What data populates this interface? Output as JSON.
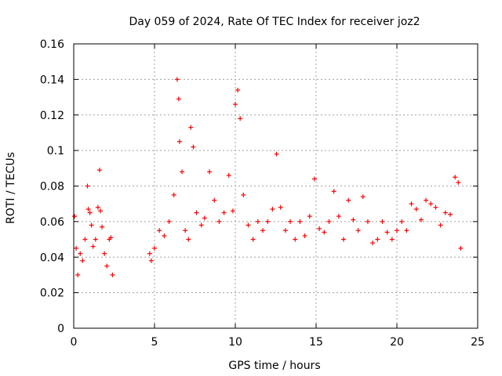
{
  "chart_data": {
    "type": "scatter",
    "title": "Day 059 of 2024, Rate Of TEC Index for receiver joz2",
    "xlabel": "GPS time / hours",
    "ylabel": "ROTI / TECUs",
    "xlim": [
      0,
      25
    ],
    "ylim": [
      0,
      0.16
    ],
    "x_ticks": [
      0,
      5,
      10,
      15,
      20,
      25
    ],
    "x_tick_labels": [
      "0",
      "5",
      "10",
      "15",
      "20",
      "25"
    ],
    "y_ticks": [
      0,
      0.02,
      0.04,
      0.06,
      0.08,
      0.1,
      0.12,
      0.14,
      0.16
    ],
    "y_tick_labels": [
      "0",
      "0.02",
      "0.04",
      "0.06",
      "0.08",
      "0.1",
      "0.12",
      "0.14",
      "0.16"
    ],
    "grid": true,
    "marker": "+",
    "color": "#ff0000",
    "data_gap_hours": [
      2.5,
      4.6
    ],
    "series": [
      {
        "name": "ROTI",
        "x": [
          0.05,
          0.15,
          0.25,
          0.4,
          0.55,
          0.7,
          0.85,
          0.9,
          1.0,
          1.1,
          1.2,
          1.35,
          1.5,
          1.6,
          1.65,
          1.75,
          1.9,
          2.05,
          2.2,
          2.3,
          2.4,
          4.7,
          4.8,
          5.0,
          5.3,
          5.6,
          5.9,
          6.2,
          6.4,
          6.5,
          6.55,
          6.7,
          6.9,
          7.1,
          7.25,
          7.4,
          7.6,
          7.9,
          8.1,
          8.4,
          8.7,
          9.0,
          9.3,
          9.6,
          9.85,
          10.0,
          10.15,
          10.3,
          10.5,
          10.8,
          11.1,
          11.4,
          11.7,
          12.0,
          12.3,
          12.55,
          12.8,
          13.1,
          13.4,
          13.7,
          14.0,
          14.3,
          14.6,
          14.9,
          15.2,
          15.5,
          15.8,
          16.1,
          16.4,
          16.7,
          17.0,
          17.3,
          17.6,
          17.9,
          18.2,
          18.5,
          18.8,
          19.1,
          19.4,
          19.7,
          20.0,
          20.3,
          20.6,
          20.9,
          21.2,
          21.5,
          21.8,
          22.1,
          22.4,
          22.7,
          23.0,
          23.3,
          23.6,
          23.8,
          23.95
        ],
        "y": [
          0.063,
          0.045,
          0.03,
          0.042,
          0.038,
          0.05,
          0.08,
          0.067,
          0.065,
          0.058,
          0.046,
          0.05,
          0.068,
          0.089,
          0.066,
          0.057,
          0.042,
          0.035,
          0.05,
          0.051,
          0.03,
          0.042,
          0.038,
          0.045,
          0.055,
          0.052,
          0.06,
          0.075,
          0.14,
          0.129,
          0.105,
          0.088,
          0.055,
          0.05,
          0.113,
          0.102,
          0.065,
          0.058,
          0.062,
          0.088,
          0.072,
          0.06,
          0.065,
          0.086,
          0.066,
          0.126,
          0.134,
          0.118,
          0.075,
          0.058,
          0.05,
          0.06,
          0.055,
          0.06,
          0.067,
          0.098,
          0.068,
          0.055,
          0.06,
          0.05,
          0.06,
          0.052,
          0.063,
          0.084,
          0.056,
          0.054,
          0.06,
          0.077,
          0.063,
          0.05,
          0.072,
          0.061,
          0.055,
          0.074,
          0.06,
          0.048,
          0.05,
          0.06,
          0.054,
          0.05,
          0.055,
          0.06,
          0.055,
          0.07,
          0.067,
          0.061,
          0.072,
          0.07,
          0.068,
          0.058,
          0.065,
          0.064,
          0.085,
          0.082,
          0.045
        ]
      }
    ]
  }
}
